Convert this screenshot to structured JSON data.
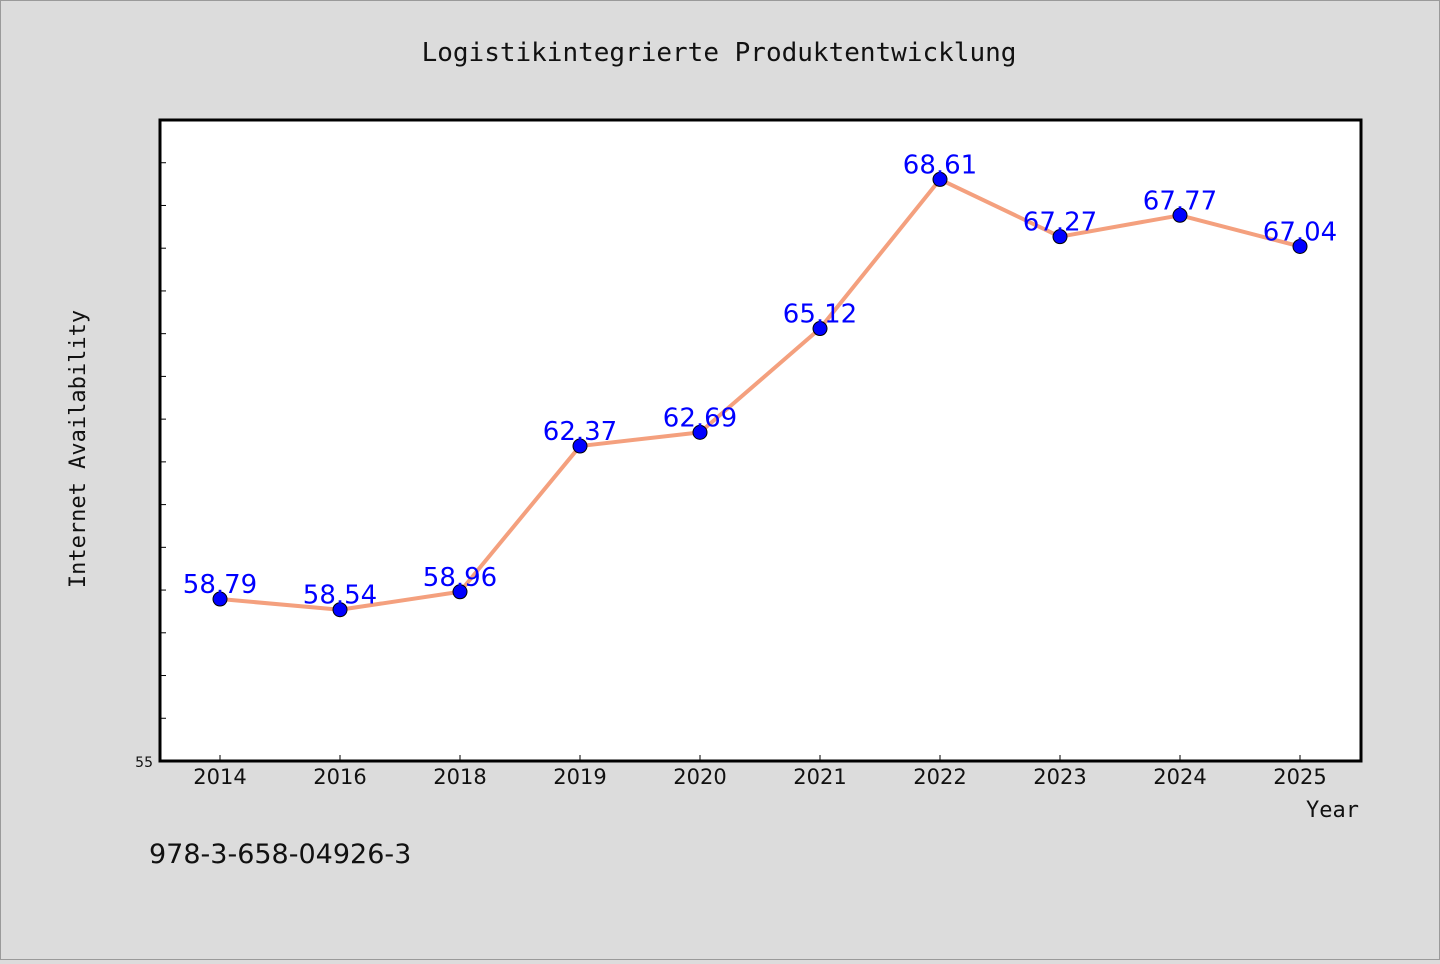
{
  "chart_data": {
    "type": "line",
    "title": "Logistikintegrierte Produktentwicklung",
    "xlabel": "Year",
    "ylabel": "Internet Availability",
    "categories": [
      "2014",
      "2016",
      "2018",
      "2019",
      "2020",
      "2021",
      "2022",
      "2023",
      "2024",
      "2025"
    ],
    "values": [
      58.79,
      58.54,
      58.96,
      62.37,
      62.69,
      65.12,
      68.61,
      67.27,
      67.77,
      67.04
    ],
    "data_labels": [
      "58.79",
      "58.54",
      "58.96",
      "62.37",
      "62.69",
      "65.12",
      "68.61",
      "67.27",
      "67.77",
      "67.04"
    ],
    "ylim": [
      55,
      70
    ],
    "y_tick_step": 1,
    "y_min_label": "55",
    "grid": false,
    "line_color": "#f4a07e",
    "marker_color": "#0000ff",
    "label_color": "#0000ff"
  },
  "footer_text": "978-3-658-04926-3"
}
